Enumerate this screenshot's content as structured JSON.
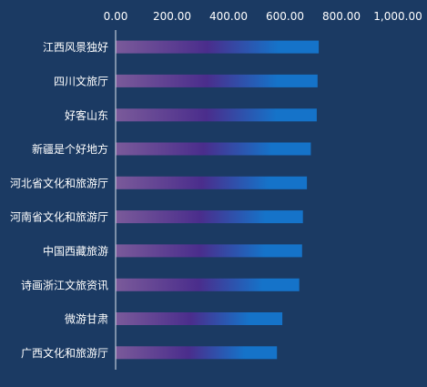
{
  "chart_data": {
    "type": "bar",
    "orientation": "horizontal",
    "title": "",
    "xlabel": "",
    "ylabel": "",
    "xlim": [
      0,
      1000
    ],
    "x_ticks": [
      "0.00",
      "200.00",
      "400.00",
      "600.00",
      "800.00",
      "1,000.00"
    ],
    "x_axis_position": "top",
    "grid": false,
    "legend": "none",
    "categories": [
      "江西风景独好",
      "四川文旅厅",
      "好客山东",
      "新疆是个好地方",
      "河北省文化和旅游厅",
      "河南省文化和旅游厅",
      "中国西藏旅游",
      "诗画浙江文旅资讯",
      "微游甘肃",
      "广西文化和旅游厅"
    ],
    "values": [
      718,
      714,
      711,
      690,
      676,
      662,
      659,
      649,
      589,
      570
    ]
  },
  "colors": {
    "background": "#1b3a63",
    "text": "#ffffff",
    "axis": "#dfe6ef",
    "bar_start": "#7a5a9a",
    "bar_mid": "#4a2d8c",
    "bar_end": "#1573c9"
  }
}
